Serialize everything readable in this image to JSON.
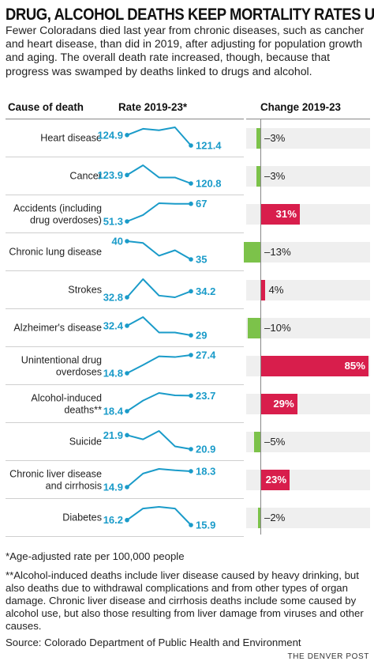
{
  "title": "DRUG, ALCOHOL DEATHS KEEP MORTALITY RATES UP",
  "intro": "Fewer Coloradans died last year from chronic diseases, such as cancher and heart disease, than did in 2019, after adjusting for population growth and aging. The overall death rate increased, though, because that progress was swamped by deaths linked to drugs and alcohol.",
  "headers": {
    "cause": "Cause of death",
    "rate": "Rate 2019-23*",
    "change": "Change 2019-23"
  },
  "colors": {
    "line": "#1a9bc9",
    "value_text": "#1a9bc9",
    "negative": "#7cc24a",
    "positive": "#d81e4c",
    "bg": "#efefef"
  },
  "chart_data": {
    "type": "line",
    "x": [
      "2019",
      "2020",
      "2021",
      "2022",
      "2023"
    ],
    "rows": [
      {
        "cause": "Heart disease",
        "start": "124.9",
        "end": "121.4",
        "values": [
          124.9,
          127.0,
          126.5,
          127.5,
          121.4
        ],
        "change": -3,
        "change_label": "–3%"
      },
      {
        "cause": "Cancer",
        "start": "123.9",
        "end": "120.8",
        "values": [
          123.9,
          127.5,
          123.0,
          123.0,
          120.8
        ],
        "change": -3,
        "change_label": "–3%"
      },
      {
        "cause": "Accidents (including drug overdoses)",
        "start": "51.3",
        "end": "67",
        "values": [
          51.3,
          57.0,
          67.5,
          67.0,
          67.0
        ],
        "change": 31,
        "change_label": "31%"
      },
      {
        "cause": "Chronic lung disease",
        "start": "40",
        "end": "35",
        "values": [
          40.0,
          39.5,
          36.0,
          37.5,
          35.0
        ],
        "change": -13,
        "change_label": "–13%"
      },
      {
        "cause": "Strokes",
        "start": "32.8",
        "end": "34.2",
        "values": [
          32.8,
          37.0,
          33.2,
          32.8,
          34.2
        ],
        "change": 4,
        "change_label": "4%"
      },
      {
        "cause": "Alzheimer's disease",
        "start": "32.4",
        "end": "29",
        "values": [
          32.4,
          35.5,
          30.0,
          30.0,
          29.0
        ],
        "change": -10,
        "change_label": "–10%"
      },
      {
        "cause": "Unintentional drug overdoses",
        "start": "14.8",
        "end": "27.4",
        "values": [
          14.8,
          20.5,
          26.5,
          26.0,
          27.4
        ],
        "change": 85,
        "change_label": "85%"
      },
      {
        "cause": "Alcohol-induced deaths**",
        "start": "18.4",
        "end": "23.7",
        "values": [
          18.4,
          22.0,
          24.6,
          23.8,
          23.7
        ],
        "change": 29,
        "change_label": "29%"
      },
      {
        "cause": "Suicide",
        "start": "21.9",
        "end": "20.9",
        "values": [
          21.9,
          21.6,
          22.2,
          21.1,
          20.9
        ],
        "change": -5,
        "change_label": "–5%"
      },
      {
        "cause": "Chronic liver disease and cirrhosis",
        "start": "14.9",
        "end": "18.3",
        "values": [
          14.9,
          17.8,
          18.8,
          18.5,
          18.3
        ],
        "change": 23,
        "change_label": "23%"
      },
      {
        "cause": "Diabetes",
        "start": "16.2",
        "end": "15.9",
        "values": [
          16.2,
          16.9,
          17.0,
          16.9,
          15.9
        ],
        "change": -2,
        "change_label": "–2%"
      }
    ]
  },
  "notes": {
    "age_adjusted": "*Age-adjusted rate per 100,000 people",
    "alcohol": "**Alcohol-induced deaths include liver disease caused by heavy drinking, but also deaths due to withdrawal complications and from other types of organ damage. Chronic liver disease and cirrhosis deaths include some caused by alcohol use, but also those resulting from liver damage from viruses and other causes.",
    "source": "Source: Colorado Department of Public Health and Environment",
    "credit": "THE DENVER POST"
  }
}
